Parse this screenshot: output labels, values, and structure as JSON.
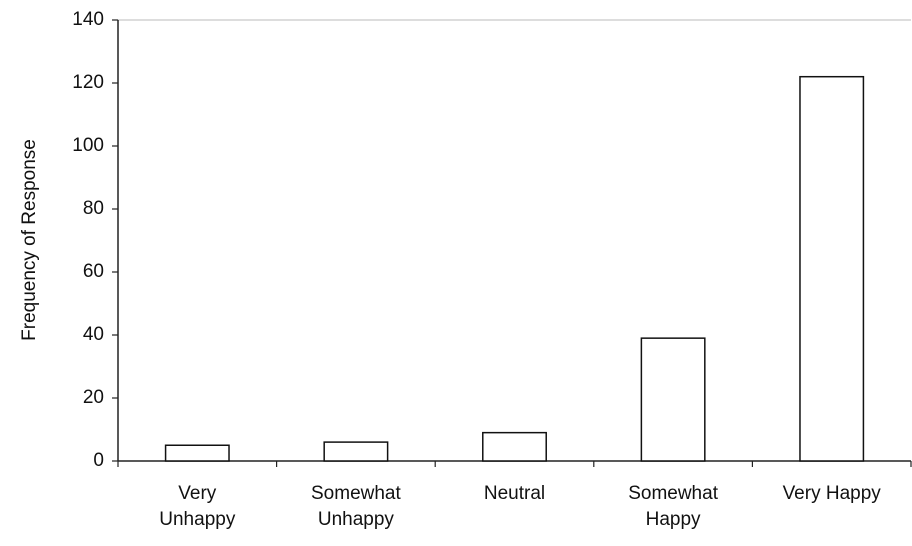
{
  "chart_data": {
    "type": "bar",
    "ylabel": "Frequency of Response",
    "categories": [
      "Very\nUnhappy",
      "Somewhat\nUnhappy",
      "Neutral",
      "Somewhat\nHappy",
      "Very Happy"
    ],
    "values": [
      5,
      6,
      9,
      39,
      122
    ],
    "color": "#ffffff",
    "ylim": [
      0,
      140
    ],
    "yticks": [
      0,
      20,
      40,
      60,
      80,
      100,
      120,
      140
    ],
    "grid": false
  }
}
